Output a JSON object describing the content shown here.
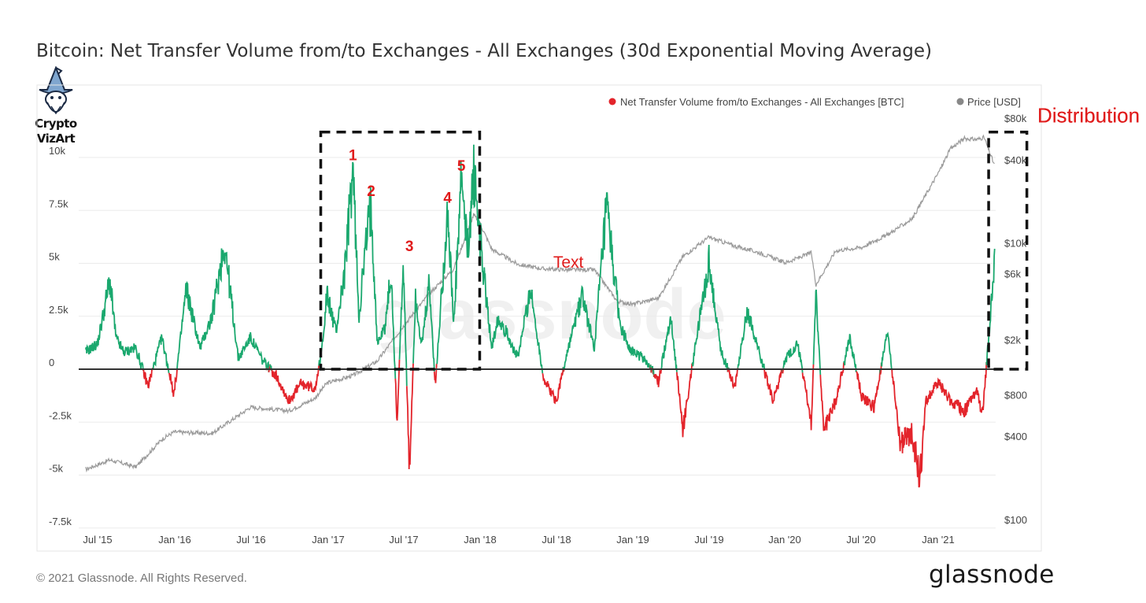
{
  "header": {
    "title": "Bitcoin: Net Transfer Volume from/to Exchanges - All Exchanges (30d Exponential Moving Average)"
  },
  "logo": {
    "line1": "Crypto",
    "line2": "VizArt",
    "icon": "wizard-icon"
  },
  "footer": {
    "copyright": "© 2021 Glassnode. All Rights Reserved.",
    "brand": "glassnode"
  },
  "watermark": "glassnode",
  "colors": {
    "positive": "#1aa86e",
    "negative": "#e3242b",
    "price": "#9a9a9a",
    "annotation": "#e01b1b",
    "zero_line": "#333333",
    "grid": "#ebebeb"
  },
  "chart_data": {
    "type": "line",
    "title": "Bitcoin: Net Transfer Volume from/to Exchanges - All Exchanges (30d Exponential Moving Average)",
    "xlabel": "",
    "ylabel": "",
    "x_ticks": [
      "Jul '15",
      "Jan '16",
      "Jul '16",
      "Jan '17",
      "Jul '17",
      "Jan '18",
      "Jul '18",
      "Jan '19",
      "Jul '19",
      "Jan '20",
      "Jul '20",
      "Jan '21"
    ],
    "y_left": {
      "ticks": [
        -7500,
        -5000,
        -2500,
        0,
        2500,
        5000,
        7500,
        10000
      ],
      "tick_labels": [
        "-7.5k",
        "-5k",
        "-2.5k",
        "0",
        "2.5k",
        "5k",
        "7.5k",
        "10k"
      ],
      "ylim": [
        -7500,
        10000
      ]
    },
    "y_right": {
      "scale": "log",
      "ticks": [
        100,
        400,
        800,
        2000,
        6000,
        10000,
        40000,
        80000
      ],
      "tick_labels": [
        "$100",
        "$400",
        "$800",
        "$2k",
        "$6k",
        "$10k",
        "$40k",
        "$80k"
      ],
      "ylim": [
        100,
        80000
      ]
    },
    "legend": {
      "placement": "top-right",
      "entries": [
        {
          "name": "Net Transfer Volume from/to Exchanges - All Exchanges [BTC]",
          "color": "#e3242b"
        },
        {
          "name": "Price [USD]",
          "color": "#888888"
        }
      ]
    },
    "series": [
      {
        "name": "Net Transfer Volume from/to Exchanges - All Exchanges [BTC]",
        "axis": "left",
        "x": [
          2015.42,
          2015.5,
          2015.58,
          2015.62,
          2015.67,
          2015.75,
          2015.83,
          2015.92,
          2016.0,
          2016.08,
          2016.17,
          2016.25,
          2016.33,
          2016.42,
          2016.5,
          2016.58,
          2016.67,
          2016.75,
          2016.83,
          2016.92,
          2016.96,
          2017.0,
          2017.06,
          2017.12,
          2017.17,
          2017.21,
          2017.25,
          2017.29,
          2017.33,
          2017.38,
          2017.42,
          2017.46,
          2017.5,
          2017.54,
          2017.58,
          2017.62,
          2017.67,
          2017.71,
          2017.75,
          2017.79,
          2017.83,
          2017.88,
          2017.92,
          2017.96,
          2018.0,
          2018.04,
          2018.08,
          2018.12,
          2018.17,
          2018.25,
          2018.33,
          2018.42,
          2018.5,
          2018.58,
          2018.67,
          2018.75,
          2018.83,
          2018.92,
          2019.0,
          2019.08,
          2019.17,
          2019.25,
          2019.33,
          2019.42,
          2019.5,
          2019.58,
          2019.67,
          2019.75,
          2019.83,
          2019.92,
          2020.0,
          2020.08,
          2020.17,
          2020.2,
          2020.25,
          2020.33,
          2020.42,
          2020.5,
          2020.58,
          2020.67,
          2020.75,
          2020.83,
          2020.88,
          2020.92,
          2021.0,
          2021.08,
          2021.17,
          2021.25,
          2021.29,
          2021.33,
          2021.37
        ],
        "values": [
          800,
          1200,
          4200,
          1500,
          800,
          1000,
          -800,
          1500,
          -1200,
          3800,
          1000,
          2500,
          6000,
          500,
          1500,
          400,
          -300,
          -1500,
          -700,
          -900,
          500,
          3500,
          1800,
          4800,
          9500,
          2500,
          5500,
          7800,
          1200,
          2000,
          4500,
          -2500,
          5200,
          -5000,
          3500,
          1000,
          4000,
          -800,
          3500,
          7500,
          2000,
          9000,
          5500,
          9200,
          6500,
          3500,
          1000,
          2500,
          1800,
          500,
          3800,
          -500,
          -1500,
          1000,
          3500,
          1000,
          7500,
          2000,
          800,
          500,
          -600,
          2500,
          -2800,
          1500,
          5000,
          800,
          -800,
          2800,
          800,
          -1500,
          400,
          1200,
          -2500,
          3500,
          -2800,
          -1500,
          1500,
          -1300,
          -1800,
          1800,
          -3500,
          -3000,
          -5200,
          -1500,
          -600,
          -1500,
          -2000,
          -1000,
          -2200,
          1500,
          5000
        ]
      },
      {
        "name": "Price [USD]",
        "axis": "right",
        "x": [
          2015.42,
          2015.58,
          2015.75,
          2015.92,
          2016.0,
          2016.25,
          2016.5,
          2016.75,
          2016.92,
          2017.0,
          2017.17,
          2017.33,
          2017.5,
          2017.67,
          2017.83,
          2017.96,
          2018.0,
          2018.08,
          2018.25,
          2018.42,
          2018.58,
          2018.75,
          2018.9,
          2019.0,
          2019.17,
          2019.33,
          2019.5,
          2019.67,
          2019.83,
          2020.0,
          2020.17,
          2020.2,
          2020.33,
          2020.5,
          2020.67,
          2020.83,
          2021.0,
          2021.08,
          2021.17,
          2021.25,
          2021.3,
          2021.37
        ],
        "values": [
          230,
          270,
          240,
          380,
          430,
          420,
          650,
          610,
          750,
          970,
          1100,
          1400,
          2500,
          4300,
          6500,
          16000,
          14000,
          9000,
          7000,
          6500,
          6400,
          6400,
          3800,
          3600,
          4000,
          8000,
          11000,
          9500,
          8500,
          7200,
          8500,
          5000,
          8800,
          9300,
          11500,
          15000,
          32000,
          48000,
          57000,
          56000,
          58000,
          36000
        ]
      }
    ],
    "annotations": [
      {
        "label": "1",
        "x": 2017.17,
        "y": 9500
      },
      {
        "label": "2",
        "x": 2017.29,
        "y": 7800
      },
      {
        "label": "3",
        "x": 2017.54,
        "y": 5200
      },
      {
        "label": "4",
        "x": 2017.79,
        "y": 7500
      },
      {
        "label": "5",
        "x": 2017.88,
        "y": 9000
      },
      {
        "label": "Text",
        "x": 2018.58,
        "y": 4800
      },
      {
        "label": "Distribution",
        "box_x": [
          2016.96,
          2018.0
        ],
        "box_y": [
          0,
          11200
        ]
      },
      {
        "label": "Distribution",
        "box_x": [
          2021.33,
          2021.58
        ],
        "box_y": [
          0,
          11200
        ]
      }
    ],
    "grid": true
  }
}
